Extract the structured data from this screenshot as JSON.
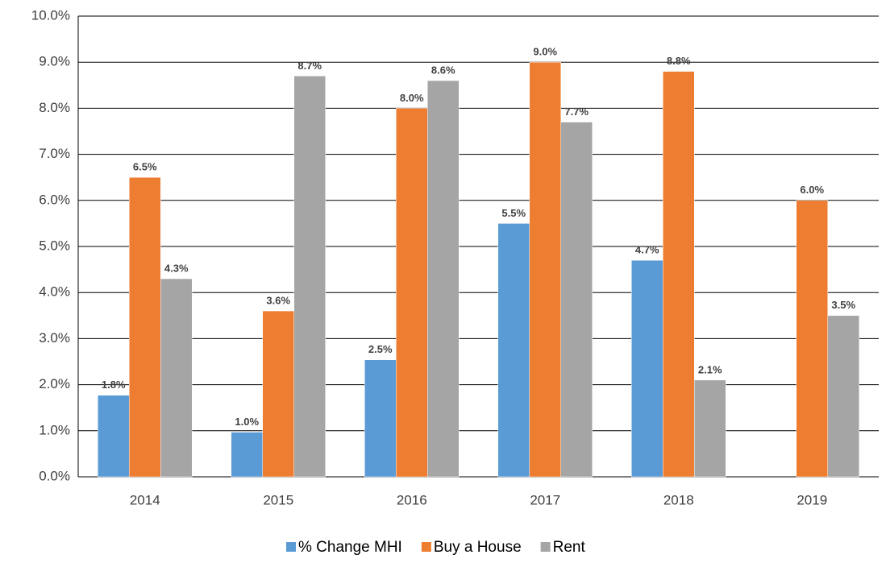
{
  "chart_data": {
    "type": "bar",
    "categories": [
      "2014",
      "2015",
      "2016",
      "2017",
      "2018",
      "2019"
    ],
    "series": [
      {
        "name": "% Change MHI",
        "color": "#5b9bd5",
        "values": [
          1.77,
          0.97,
          2.54,
          5.5,
          4.7,
          null
        ],
        "value_labels": [
          "1.8%",
          "1.0%",
          "2.5%",
          "5.5%",
          "4.7%",
          null
        ]
      },
      {
        "name": "Buy a House",
        "color": "#ed7d31",
        "values": [
          6.5,
          3.6,
          8.0,
          9.0,
          8.8,
          6.0
        ],
        "value_labels": [
          "6.5%",
          "3.6%",
          "8.0%",
          "9.0%",
          "8.8%",
          "6.0%"
        ]
      },
      {
        "name": "Rent",
        "color": "#a5a5a5",
        "values": [
          4.3,
          8.7,
          8.6,
          7.7,
          2.1,
          3.5
        ],
        "value_labels": [
          "4.3%",
          "8.7%",
          "8.6%",
          "7.7%",
          "2.1%",
          "3.5%"
        ]
      }
    ],
    "ylim": [
      0,
      10
    ],
    "yticks": [
      {
        "value": 0,
        "label": "0.0%"
      },
      {
        "value": 1,
        "label": "1.0%"
      },
      {
        "value": 2,
        "label": "2.0%"
      },
      {
        "value": 3,
        "label": "3.0%"
      },
      {
        "value": 4,
        "label": "4.0%"
      },
      {
        "value": 5,
        "label": "5.0%"
      },
      {
        "value": 6,
        "label": "6.0%"
      },
      {
        "value": 7,
        "label": "7.0%"
      },
      {
        "value": 8,
        "label": "8.0%"
      },
      {
        "value": 9,
        "label": "9.0%"
      },
      {
        "value": 10,
        "label": "10.0%"
      }
    ],
    "grid": true,
    "legend": "bottom"
  }
}
